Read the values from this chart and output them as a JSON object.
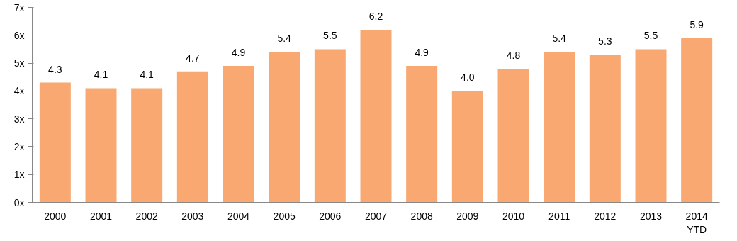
{
  "chart_data": {
    "type": "bar",
    "categories": [
      "2000",
      "2001",
      "2002",
      "2003",
      "2004",
      "2005",
      "2006",
      "2007",
      "2008",
      "2009",
      "2010",
      "2011",
      "2012",
      "2013",
      "2014\nYTD"
    ],
    "values": [
      4.3,
      4.1,
      4.1,
      4.7,
      4.9,
      5.4,
      5.5,
      6.2,
      4.9,
      4.0,
      4.8,
      5.4,
      5.3,
      5.5,
      5.9
    ],
    "color": "#f8a870",
    "ylim": [
      0,
      7
    ],
    "yticks": [
      {
        "value": 0,
        "label": "0x"
      },
      {
        "value": 1,
        "label": "1x"
      },
      {
        "value": 2,
        "label": "2x"
      },
      {
        "value": 3,
        "label": "3x"
      },
      {
        "value": 4,
        "label": "4x"
      },
      {
        "value": 5,
        "label": "5x"
      },
      {
        "value": 6,
        "label": "6x"
      },
      {
        "value": 7,
        "label": "7x"
      }
    ],
    "value_labels": [
      "4.3",
      "4.1",
      "4.1",
      "4.7",
      "4.9",
      "5.4",
      "5.5",
      "6.2",
      "4.9",
      "4.0",
      "4.8",
      "5.4",
      "5.3",
      "5.5",
      "5.9"
    ],
    "grid": false
  }
}
